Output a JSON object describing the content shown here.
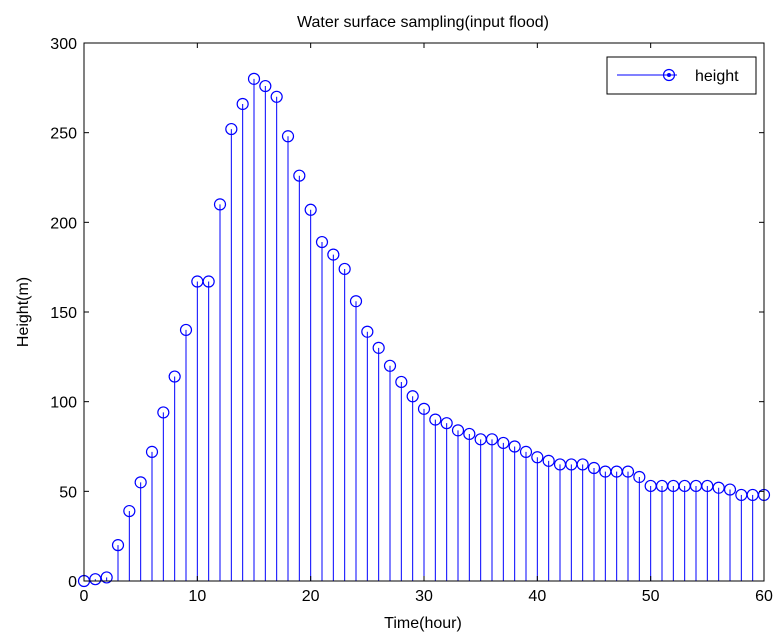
{
  "chart_data": {
    "type": "stem",
    "title": "Water surface sampling(input flood)",
    "xlabel": "Time(hour)",
    "ylabel": "Height(m)",
    "xlim": [
      0,
      60
    ],
    "ylim": [
      0,
      300
    ],
    "xticks": [
      0,
      10,
      20,
      30,
      40,
      50,
      60
    ],
    "yticks": [
      0,
      50,
      100,
      150,
      200,
      250,
      300
    ],
    "grid": false,
    "legend_position": "top-right",
    "series": [
      {
        "name": "height",
        "color": "#0000ff",
        "marker": "circle",
        "x": [
          0,
          1,
          2,
          3,
          4,
          5,
          6,
          7,
          8,
          9,
          10,
          11,
          12,
          13,
          14,
          15,
          16,
          17,
          18,
          19,
          20,
          21,
          22,
          23,
          24,
          25,
          26,
          27,
          28,
          29,
          30,
          31,
          32,
          33,
          34,
          35,
          36,
          37,
          38,
          39,
          40,
          41,
          42,
          43,
          44,
          45,
          46,
          47,
          48,
          49,
          50,
          51,
          52,
          53,
          54,
          55,
          56,
          57,
          58,
          59,
          60
        ],
        "values": [
          0,
          1,
          2,
          20,
          39,
          55,
          72,
          94,
          114,
          140,
          167,
          167,
          210,
          252,
          266,
          280,
          276,
          270,
          248,
          226,
          207,
          189,
          182,
          174,
          156,
          139,
          130,
          120,
          111,
          103,
          96,
          90,
          88,
          84,
          82,
          79,
          79,
          77,
          75,
          72,
          69,
          67,
          65,
          65,
          65,
          63,
          61,
          61,
          61,
          58,
          53,
          53,
          53,
          53,
          53,
          53,
          52,
          51,
          48,
          48,
          48
        ]
      }
    ]
  }
}
